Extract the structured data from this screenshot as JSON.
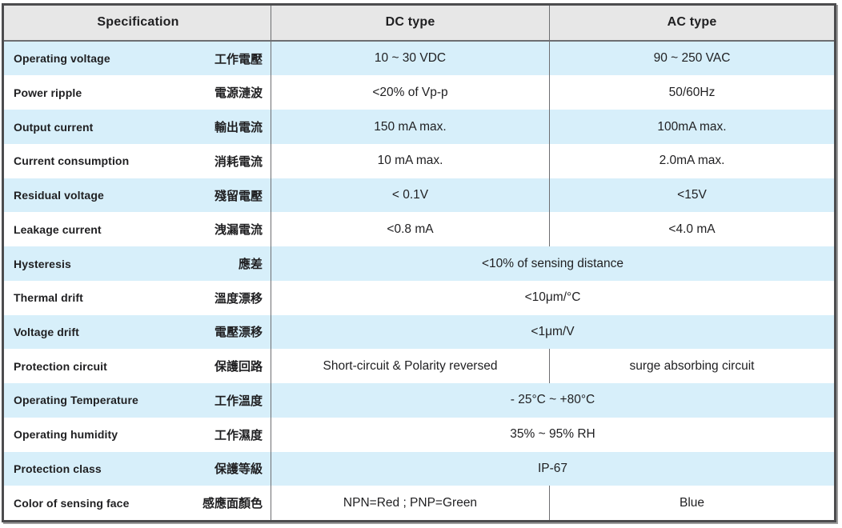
{
  "colors": {
    "frame_border": "#4c4c4e",
    "grid_line": "#6d6e71",
    "header_bg": "#e7e7e7",
    "alt_row_bg": "#d7effa",
    "text": "#1f1f21"
  },
  "table": {
    "headers": [
      "Specification",
      "DC type",
      "AC type"
    ],
    "rows": [
      {
        "en": "Operating voltage",
        "zh": "工作電壓",
        "dc": "10 ~ 30 VDC",
        "ac": "90 ~ 250 VAC"
      },
      {
        "en": "Power ripple",
        "zh": "電源漣波",
        "dc": "<20% of Vp-p",
        "ac": "50/60Hz"
      },
      {
        "en": "Output current",
        "zh": "輸出電流",
        "dc": "150 mA max.",
        "ac": "100mA max."
      },
      {
        "en": "Current consumption",
        "zh": "消耗電流",
        "dc": "10 mA max.",
        "ac": "2.0mA max."
      },
      {
        "en": "Residual voltage",
        "zh": "殘留電壓",
        "dc": "< 0.1V",
        "ac": "<15V"
      },
      {
        "en": "Leakage current",
        "zh": "洩漏電流",
        "dc": "<0.8 mA",
        "ac": "<4.0 mA"
      },
      {
        "en": "Hysteresis",
        "zh": "應差",
        "span": "<10% of sensing distance"
      },
      {
        "en": "Thermal drift",
        "zh": "溫度漂移",
        "span": "<10μm/°C"
      },
      {
        "en": "Voltage drift",
        "zh": "電壓漂移",
        "span": "<1μm/V"
      },
      {
        "en": "Protection circuit",
        "zh": "保護回路",
        "dc": "Short-circuit & Polarity reversed",
        "ac": "surge absorbing circuit"
      },
      {
        "en": "Operating Temperature",
        "zh": "工作溫度",
        "span": "- 25°C ~ +80°C"
      },
      {
        "en": "Operating humidity",
        "zh": "工作濕度",
        "span": "35% ~ 95% RH"
      },
      {
        "en": "Protection class",
        "zh": "保護等級",
        "span": "IP-67"
      },
      {
        "en": "Color of sensing face",
        "zh": "感應面顏色",
        "dc": "NPN=Red ; PNP=Green",
        "ac": "Blue"
      }
    ]
  }
}
